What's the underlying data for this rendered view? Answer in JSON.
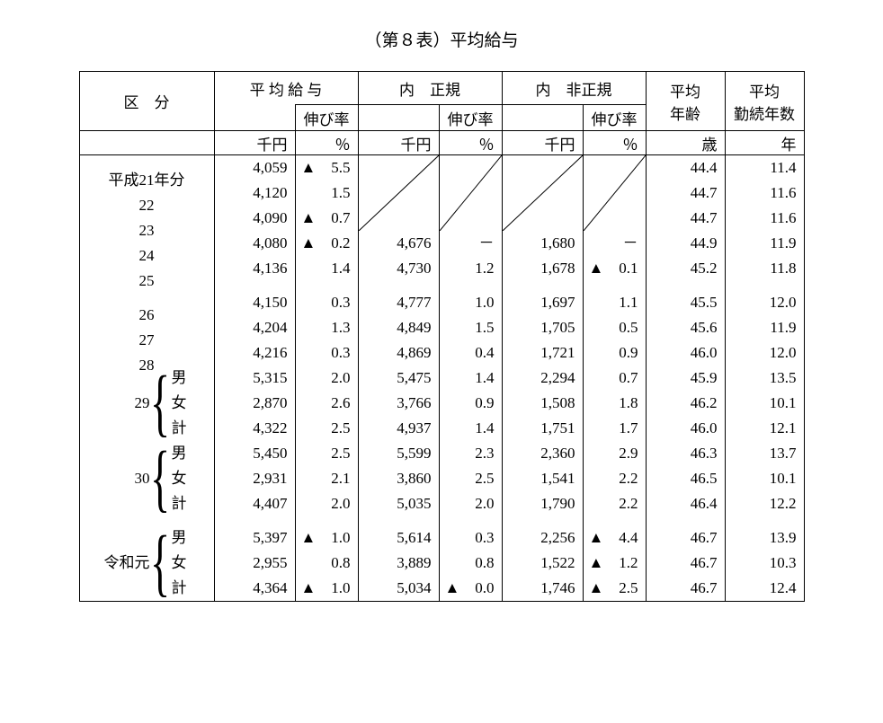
{
  "title": "（第８表）平均給与",
  "headers": {
    "kubun": "区　分",
    "avg_salary": "平 均 給 与",
    "inner_regular": "内　正規",
    "inner_nonregular": "内　非正規",
    "growth": "伸び率",
    "avg_age": "平均\n年齢",
    "avg_tenure": "平均\n勤続年数"
  },
  "units": {
    "thousand_yen": "千円",
    "percent": "％",
    "years_age": "歳",
    "years_tenure": "年"
  },
  "groups": {
    "sub_male": "男",
    "sub_female": "女",
    "sub_total": "計"
  },
  "rows": [
    {
      "label": "平成21年分",
      "salary": "4,059",
      "s_tri": true,
      "s_rate": "5.5",
      "reg": null,
      "reg_tri": false,
      "reg_rate": null,
      "nreg": null,
      "nreg_tri": false,
      "nreg_rate": null,
      "age": "44.4",
      "tenure": "11.4",
      "diag": "top"
    },
    {
      "label": "22",
      "salary": "4,120",
      "s_tri": false,
      "s_rate": "1.5",
      "reg": null,
      "reg_tri": false,
      "reg_rate": null,
      "nreg": null,
      "nreg_tri": false,
      "nreg_rate": null,
      "age": "44.7",
      "tenure": "11.6",
      "diag": "mid"
    },
    {
      "label": "23",
      "salary": "4,090",
      "s_tri": true,
      "s_rate": "0.7",
      "reg": null,
      "reg_tri": false,
      "reg_rate": null,
      "nreg": null,
      "nreg_tri": false,
      "nreg_rate": null,
      "age": "44.7",
      "tenure": "11.6",
      "diag": "bot"
    },
    {
      "label": "24",
      "salary": "4,080",
      "s_tri": true,
      "s_rate": "0.2",
      "reg": "4,676",
      "reg_tri": false,
      "reg_rate": "－",
      "nreg": "1,680",
      "nreg_tri": false,
      "nreg_rate": "－",
      "age": "44.9",
      "tenure": "11.9"
    },
    {
      "label": "25",
      "salary": "4,136",
      "s_tri": false,
      "s_rate": "1.4",
      "reg": "4,730",
      "reg_tri": false,
      "reg_rate": "1.2",
      "nreg": "1,678",
      "nreg_tri": true,
      "nreg_rate": "0.1",
      "age": "45.2",
      "tenure": "11.8"
    },
    {
      "spacer": true
    },
    {
      "label": "26",
      "salary": "4,150",
      "s_tri": false,
      "s_rate": "0.3",
      "reg": "4,777",
      "reg_tri": false,
      "reg_rate": "1.0",
      "nreg": "1,697",
      "nreg_tri": false,
      "nreg_rate": "1.1",
      "age": "45.5",
      "tenure": "12.0"
    },
    {
      "label": "27",
      "salary": "4,204",
      "s_tri": false,
      "s_rate": "1.3",
      "reg": "4,849",
      "reg_tri": false,
      "reg_rate": "1.5",
      "nreg": "1,705",
      "nreg_tri": false,
      "nreg_rate": "0.5",
      "age": "45.6",
      "tenure": "11.9"
    },
    {
      "label": "28",
      "salary": "4,216",
      "s_tri": false,
      "s_rate": "0.3",
      "reg": "4,869",
      "reg_tri": false,
      "reg_rate": "0.4",
      "nreg": "1,721",
      "nreg_tri": false,
      "nreg_rate": "0.9",
      "age": "46.0",
      "tenure": "12.0"
    },
    {
      "group": "29",
      "sub": "男",
      "salary": "5,315",
      "s_tri": false,
      "s_rate": "2.0",
      "reg": "5,475",
      "reg_tri": false,
      "reg_rate": "1.4",
      "nreg": "2,294",
      "nreg_tri": false,
      "nreg_rate": "0.7",
      "age": "45.9",
      "tenure": "13.5"
    },
    {
      "group": "29",
      "sub": "女",
      "salary": "2,870",
      "s_tri": false,
      "s_rate": "2.6",
      "reg": "3,766",
      "reg_tri": false,
      "reg_rate": "0.9",
      "nreg": "1,508",
      "nreg_tri": false,
      "nreg_rate": "1.8",
      "age": "46.2",
      "tenure": "10.1"
    },
    {
      "group": "29",
      "sub": "計",
      "salary": "4,322",
      "s_tri": false,
      "s_rate": "2.5",
      "reg": "4,937",
      "reg_tri": false,
      "reg_rate": "1.4",
      "nreg": "1,751",
      "nreg_tri": false,
      "nreg_rate": "1.7",
      "age": "46.0",
      "tenure": "12.1"
    },
    {
      "group": "30",
      "sub": "男",
      "salary": "5,450",
      "s_tri": false,
      "s_rate": "2.5",
      "reg": "5,599",
      "reg_tri": false,
      "reg_rate": "2.3",
      "nreg": "2,360",
      "nreg_tri": false,
      "nreg_rate": "2.9",
      "age": "46.3",
      "tenure": "13.7"
    },
    {
      "group": "30",
      "sub": "女",
      "salary": "2,931",
      "s_tri": false,
      "s_rate": "2.1",
      "reg": "3,860",
      "reg_tri": false,
      "reg_rate": "2.5",
      "nreg": "1,541",
      "nreg_tri": false,
      "nreg_rate": "2.2",
      "age": "46.5",
      "tenure": "10.1"
    },
    {
      "group": "30",
      "sub": "計",
      "salary": "4,407",
      "s_tri": false,
      "s_rate": "2.0",
      "reg": "5,035",
      "reg_tri": false,
      "reg_rate": "2.0",
      "nreg": "1,790",
      "nreg_tri": false,
      "nreg_rate": "2.2",
      "age": "46.4",
      "tenure": "12.2"
    },
    {
      "spacer": true
    },
    {
      "group": "令和元",
      "sub": "男",
      "salary": "5,397",
      "s_tri": true,
      "s_rate": "1.0",
      "reg": "5,614",
      "reg_tri": false,
      "reg_rate": "0.3",
      "nreg": "2,256",
      "nreg_tri": true,
      "nreg_rate": "4.4",
      "age": "46.7",
      "tenure": "13.9"
    },
    {
      "group": "令和元",
      "sub": "女",
      "salary": "2,955",
      "s_tri": false,
      "s_rate": "0.8",
      "reg": "3,889",
      "reg_tri": false,
      "reg_rate": "0.8",
      "nreg": "1,522",
      "nreg_tri": true,
      "nreg_rate": "1.2",
      "age": "46.7",
      "tenure": "10.3"
    },
    {
      "group": "令和元",
      "sub": "計",
      "salary": "4,364",
      "s_tri": true,
      "s_rate": "1.0",
      "reg": "5,034",
      "reg_tri": true,
      "reg_rate": "0.0",
      "nreg": "1,746",
      "nreg_tri": true,
      "nreg_rate": "2.5",
      "age": "46.7",
      "tenure": "12.4"
    }
  ],
  "style": {
    "triangle": "▲",
    "brace": "{",
    "line_color": "#000000",
    "background": "#ffffff"
  }
}
